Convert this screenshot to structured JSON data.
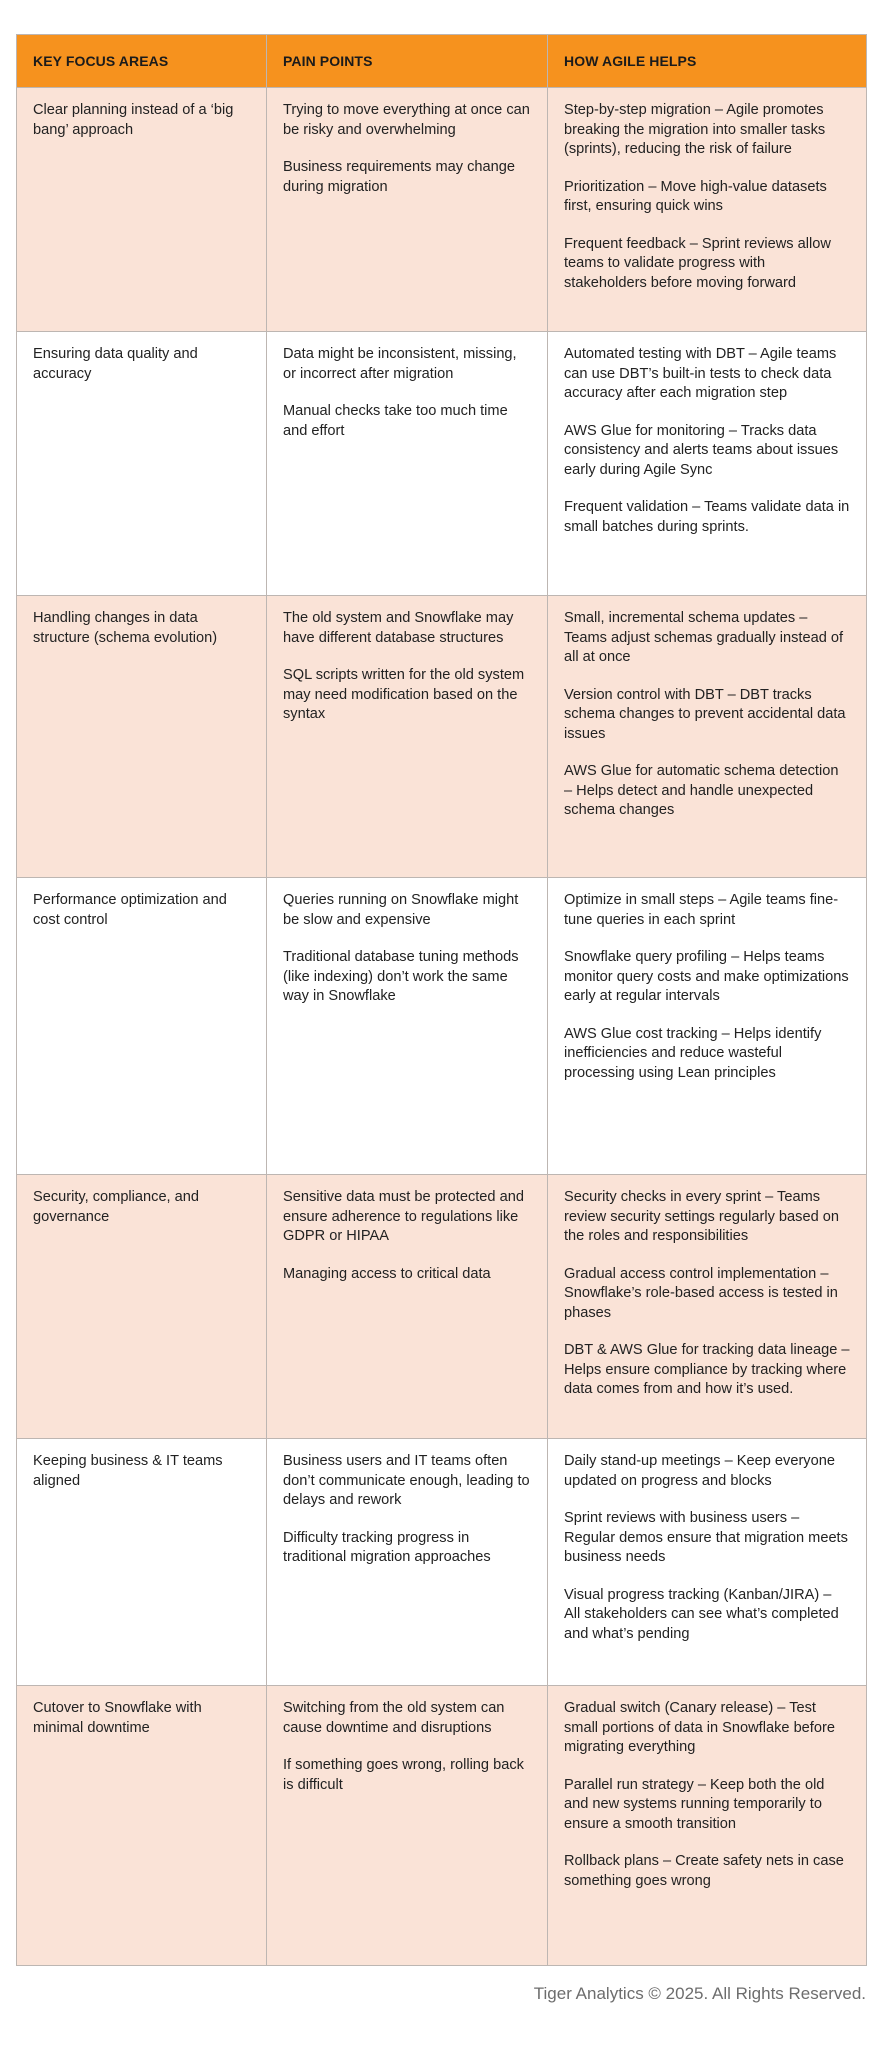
{
  "table": {
    "headers": [
      "KEY FOCUS AREAS",
      "PAIN POINTS",
      "HOW AGILE HELPS"
    ],
    "header_color": "#F6921E",
    "alt_row_color": "#FAE3D7",
    "rows": [
      {
        "focus": "Clear planning instead of a ‘big bang’ approach",
        "pains": [
          "Trying to move everything at once can be risky and overwhelming",
          "Business requirements may change during migration"
        ],
        "helps": [
          "Step-by-step migration – Agile promotes breaking the migration into smaller tasks (sprints), reducing the risk of failure",
          "Prioritization – Move high-value datasets first, ensuring quick wins",
          "Frequent feedback – Sprint reviews allow teams to validate progress with stakeholders before moving forward"
        ]
      },
      {
        "focus": "Ensuring data quality and accuracy",
        "pains": [
          "Data might be inconsistent, missing, or incorrect after migration",
          "Manual checks take too much time and effort"
        ],
        "helps": [
          "Automated testing with DBT – Agile teams can use DBT’s built-in tests to check data accuracy after each migration step",
          "AWS Glue for monitoring – Tracks data consistency and alerts teams about issues early during Agile Sync",
          "Frequent validation – Teams validate data in small batches during sprints."
        ]
      },
      {
        "focus": "Handling changes in data structure (schema evolution)",
        "pains": [
          "The old system and Snowflake may have different database structures",
          "SQL scripts written for the old system may need modification based on the syntax"
        ],
        "helps": [
          "Small, incremental schema updates – Teams adjust schemas gradually instead of all at once",
          "Version control with DBT – DBT tracks schema changes to prevent accidental data issues",
          "AWS Glue for automatic schema detection – Helps detect and handle unexpected schema changes"
        ]
      },
      {
        "focus": "Performance optimization and cost control",
        "pains": [
          "Queries running on Snowflake might be slow and expensive",
          "Traditional database tuning methods (like indexing) don’t work the same way in Snowflake"
        ],
        "helps": [
          "Optimize in small steps – Agile teams fine-tune queries in each sprint",
          "Snowflake query profiling – Helps teams monitor query costs and make optimizations early at regular intervals",
          "AWS Glue cost tracking – Helps identify inefficiencies and reduce wasteful processing using Lean principles"
        ]
      },
      {
        "focus": "Security, compliance, and governance",
        "pains": [
          "Sensitive data must be protected and ensure adherence to regulations like GDPR or HIPAA",
          "Managing access to critical data"
        ],
        "helps": [
          "Security checks in every sprint – Teams review security settings regularly based on the roles and responsibilities",
          "Gradual access control implementation – Snowflake’s role-based access is tested in phases",
          "DBT & AWS Glue for tracking data lineage – Helps ensure compliance by tracking where data comes from and how it’s used."
        ]
      },
      {
        "focus": "Keeping business & IT teams aligned",
        "pains": [
          "Business users and IT teams often don’t communicate enough, leading to delays and rework",
          "Difficulty tracking progress in traditional migration approaches"
        ],
        "helps": [
          "Daily stand-up meetings – Keep everyone updated on progress and blocks",
          "Sprint reviews with business users – Regular demos ensure that migration meets business needs",
          "Visual progress tracking (Kanban/JIRA) – All stakeholders can see what’s completed and what’s pending"
        ]
      },
      {
        "focus": "Cutover to Snowflake with minimal downtime",
        "pains": [
          "Switching from the old system can cause downtime and disruptions",
          "If something goes wrong, rolling back is difficult"
        ],
        "helps": [
          "Gradual switch (Canary release) – Test small portions of data in Snowflake before migrating everything",
          "Parallel run strategy – Keep both the old and new systems running temporarily to ensure a smooth transition",
          "Rollback plans – Create safety nets in case something goes wrong"
        ]
      }
    ]
  },
  "footer": "Tiger Analytics © 2025. All Rights Reserved."
}
